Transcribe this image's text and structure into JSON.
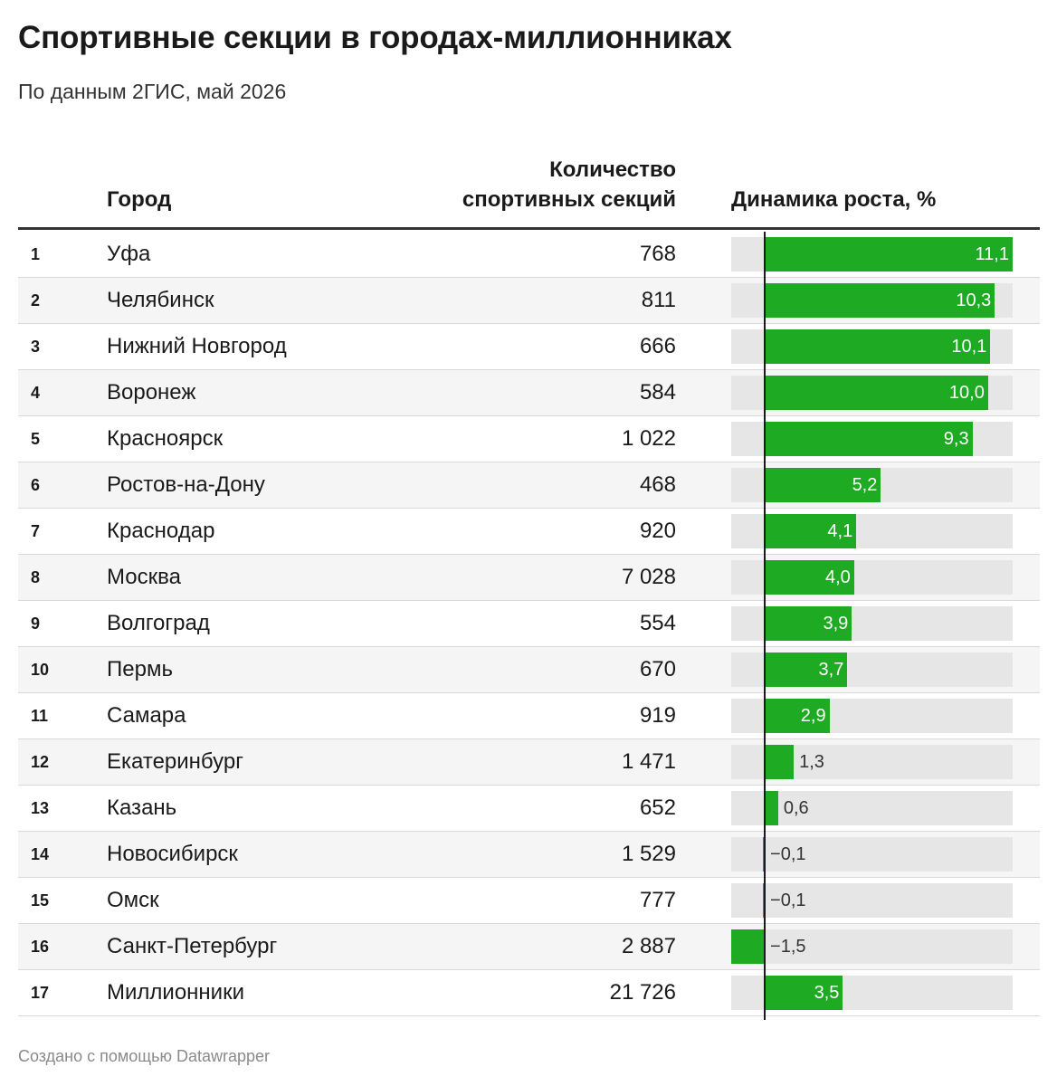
{
  "title": "Спортивные секции в городах-миллионниках",
  "subtitle": "По данным 2ГИС, май 2026",
  "columns": {
    "city": "Город",
    "count_line1": "Количество",
    "count_line2": "спортивных секций",
    "growth": "Динамика роста, %"
  },
  "footer": "Создано с помощью Datawrapper",
  "colors": {
    "bar": "#1eab23",
    "bar_bg": "#e6e6e6",
    "row_alt": "#f5f5f5"
  },
  "chart_data": {
    "type": "table",
    "xlim": [
      -1.5,
      11.1
    ],
    "rows": [
      {
        "rank": "1",
        "city": "Уфа",
        "count": "768",
        "growth": 11.1,
        "growth_label": "11,1"
      },
      {
        "rank": "2",
        "city": "Челябинск",
        "count": "811",
        "growth": 10.3,
        "growth_label": "10,3"
      },
      {
        "rank": "3",
        "city": "Нижний Новгород",
        "count": "666",
        "growth": 10.1,
        "growth_label": "10,1"
      },
      {
        "rank": "4",
        "city": "Воронеж",
        "count": "584",
        "growth": 10.0,
        "growth_label": "10,0"
      },
      {
        "rank": "5",
        "city": "Красноярск",
        "count": "1 022",
        "growth": 9.3,
        "growth_label": "9,3"
      },
      {
        "rank": "6",
        "city": "Ростов-на-Дону",
        "count": "468",
        "growth": 5.2,
        "growth_label": "5,2"
      },
      {
        "rank": "7",
        "city": "Краснодар",
        "count": "920",
        "growth": 4.1,
        "growth_label": "4,1"
      },
      {
        "rank": "8",
        "city": "Москва",
        "count": "7 028",
        "growth": 4.0,
        "growth_label": "4,0"
      },
      {
        "rank": "9",
        "city": "Волгоград",
        "count": "554",
        "growth": 3.9,
        "growth_label": "3,9"
      },
      {
        "rank": "10",
        "city": "Пермь",
        "count": "670",
        "growth": 3.7,
        "growth_label": "3,7"
      },
      {
        "rank": "11",
        "city": "Самара",
        "count": "919",
        "growth": 2.9,
        "growth_label": "2,9"
      },
      {
        "rank": "12",
        "city": "Екатеринбург",
        "count": "1 471",
        "growth": 1.3,
        "growth_label": "1,3"
      },
      {
        "rank": "13",
        "city": "Казань",
        "count": "652",
        "growth": 0.6,
        "growth_label": "0,6"
      },
      {
        "rank": "14",
        "city": "Новосибирск",
        "count": "1 529",
        "growth": -0.1,
        "growth_label": "−0,1"
      },
      {
        "rank": "15",
        "city": "Омск",
        "count": "777",
        "growth": -0.1,
        "growth_label": "−0,1"
      },
      {
        "rank": "16",
        "city": "Санкт-Петербург",
        "count": "2 887",
        "growth": -1.5,
        "growth_label": "−1,5"
      },
      {
        "rank": "17",
        "city": "Миллионники",
        "count": "21 726",
        "growth": 3.5,
        "growth_label": "3,5"
      }
    ]
  }
}
